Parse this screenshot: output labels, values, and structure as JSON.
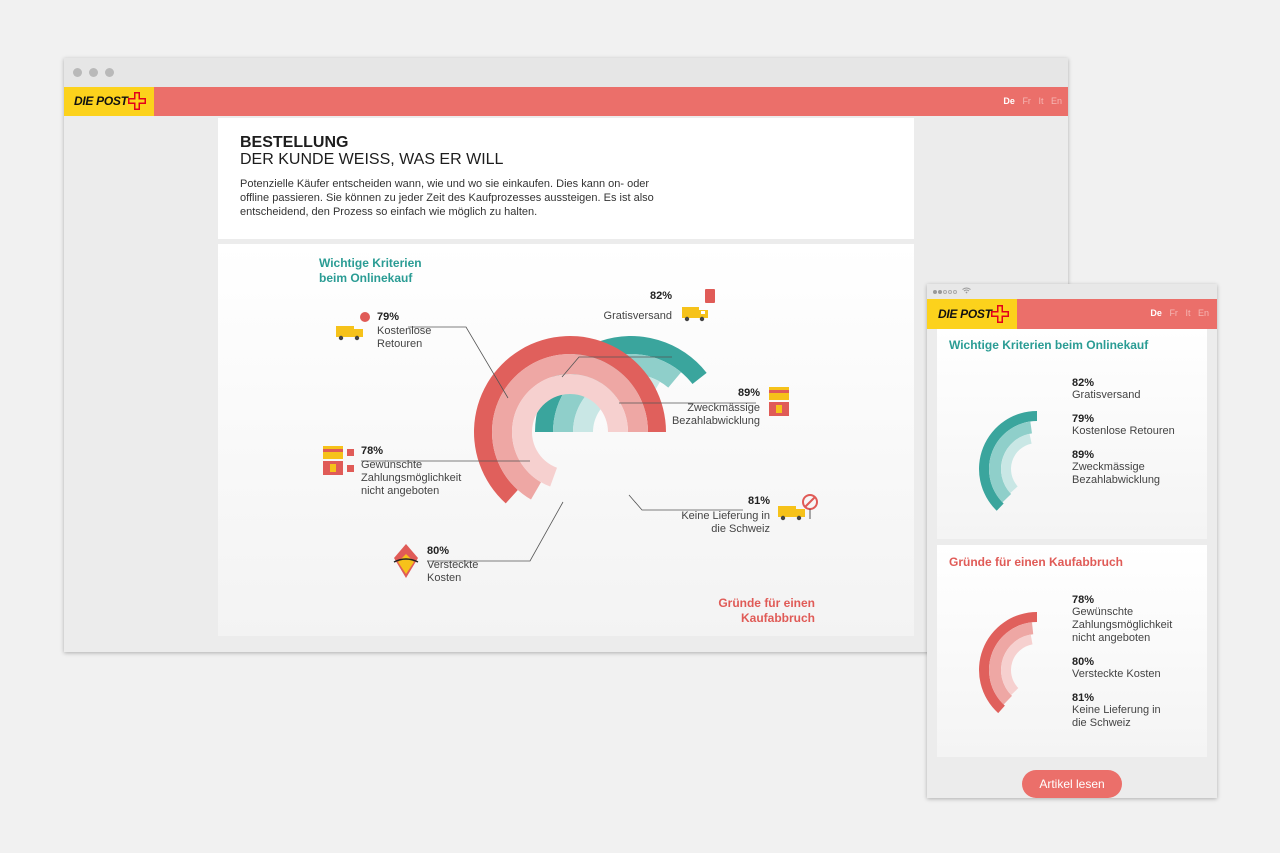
{
  "brand": {
    "logo_text": "DIE POST",
    "colors": {
      "yellow": "#fcd21c",
      "header_red": "#eb6f6a",
      "teal": "#2a9c94",
      "red": "#e05b57"
    }
  },
  "languages": [
    {
      "code": "De",
      "active": true
    },
    {
      "code": "Fr",
      "active": false
    },
    {
      "code": "It",
      "active": false
    },
    {
      "code": "En",
      "active": false
    }
  ],
  "desktop": {
    "title": "BESTELLUNG",
    "subtitle": "DER KUNDE WEISS, WAS ER WILL",
    "intro": "Potenzielle Käufer entscheiden wann, wie und wo sie einkaufen. Dies kann on- oder offline passieren. Sie können zu jeder Zeit des Kaufprozesses aussteigen. Es ist also entscheidend, den Prozess so einfach wie möglich zu halten.",
    "criteria_title": [
      "Wichtige Kriterien",
      "beim Onlinekauf"
    ],
    "abort_title": [
      "Gründe für einen",
      "Kaufabbruch"
    ],
    "criteria": [
      {
        "value": 82,
        "pct": "82%",
        "label": [
          "Gratisversand"
        ],
        "icon": "delivery-truck-icon"
      },
      {
        "value": 79,
        "pct": "79%",
        "label": [
          "Kostenlose",
          "Retouren"
        ],
        "icon": "return-truck-icon"
      },
      {
        "value": 89,
        "pct": "89%",
        "label": [
          "Zweckmässige",
          "Bezahlabwicklung"
        ],
        "icon": "payment-card-icon"
      }
    ],
    "abort": [
      {
        "value": 78,
        "pct": "78%",
        "label": [
          "Gewünschte",
          "Zahlungsmöglichkeit",
          "nicht angeboten"
        ],
        "icon": "payment-card-icon"
      },
      {
        "value": 80,
        "pct": "80%",
        "label": [
          "Versteckte",
          "Kosten"
        ],
        "icon": "price-tag-icon"
      },
      {
        "value": 81,
        "pct": "81%",
        "label": [
          "Keine Lieferung in",
          "die Schweiz"
        ],
        "icon": "no-delivery-icon"
      }
    ]
  },
  "mobile": {
    "criteria_title": "Wichtige Kriterien beim Onlinekauf",
    "abort_title": "Gründe für einen Kaufabbruch",
    "criteria": [
      {
        "pct": "82%",
        "label": [
          "Gratisversand"
        ]
      },
      {
        "pct": "79%",
        "label": [
          "Kostenlose Retouren"
        ]
      },
      {
        "pct": "89%",
        "label": [
          "Zweckmässige",
          "Bezahlabwicklung"
        ]
      }
    ],
    "abort": [
      {
        "pct": "78%",
        "label": [
          "Gewünschte",
          "Zahlungsmöglichkeit",
          "nicht angeboten"
        ]
      },
      {
        "pct": "80%",
        "label": [
          "Versteckte Kosten"
        ]
      },
      {
        "pct": "81%",
        "label": [
          "Keine Lieferung in",
          "die Schweiz"
        ]
      }
    ],
    "cta": "Artikel lesen"
  }
}
